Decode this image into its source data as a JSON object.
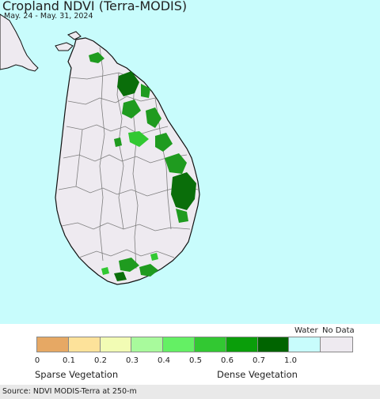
{
  "map": {
    "title": "Cropland NDVI (Terra-MODIS)",
    "subtitle": "May. 24 - May. 31, 2024",
    "region": "Sri Lanka",
    "colors": {
      "water": "#c8fcfc",
      "land_no_data": "#eeeaf0",
      "boundary": "#7d7d7d",
      "coast": "#111111",
      "dense_veg": "#1f9b1f",
      "dense_veg_dark": "#0a6e0a"
    }
  },
  "legend": {
    "special_labels": {
      "water": "Water",
      "no_data": "No Data"
    },
    "swatches": [
      {
        "from": 0.0,
        "to": 0.1,
        "color": "#e6a864"
      },
      {
        "from": 0.1,
        "to": 0.2,
        "color": "#fde29a"
      },
      {
        "from": 0.2,
        "to": 0.3,
        "color": "#f2fcb4"
      },
      {
        "from": 0.3,
        "to": 0.4,
        "color": "#a8fa9c"
      },
      {
        "from": 0.4,
        "to": 0.5,
        "color": "#64f064"
      },
      {
        "from": 0.5,
        "to": 0.6,
        "color": "#32c832"
      },
      {
        "from": 0.6,
        "to": 0.7,
        "color": "#0a9e0a"
      },
      {
        "from": 0.7,
        "to": 1.0,
        "color": "#006400"
      },
      {
        "category": "water",
        "color": "#c8fcfc"
      },
      {
        "category": "no_data",
        "color": "#eeeaf0"
      }
    ],
    "ticks": [
      "0",
      "0.1",
      "0.2",
      "0.3",
      "0.4",
      "0.5",
      "0.6",
      "0.7",
      "1.0"
    ],
    "left_caption": "Sparse Vegetation",
    "right_caption": "Dense Vegetation"
  },
  "footer": {
    "source": "Source: NDVI MODIS-Terra at 250-m"
  }
}
